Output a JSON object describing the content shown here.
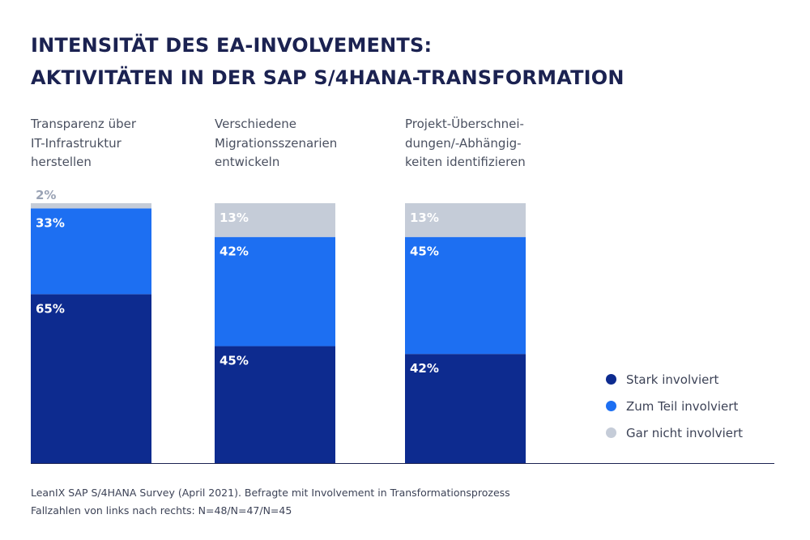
{
  "title_lines": [
    "INTENSITÄT DES EA-INVOLVEMENTS:",
    "AKTIVITÄTEN IN DER SAP S/4HANA-TRANSFORMATION"
  ],
  "chart_data": {
    "type": "bar",
    "stacked": true,
    "categories": [
      "Transparenz über\nIT-Infrastruktur\nherstellen",
      "Verschiedene\nMigrationsszenarien\nentwickeln",
      "Projekt-Überschnei-\ndungen/-Abhängig-\nkeiten identifizieren"
    ],
    "series": [
      {
        "name": "Stark involviert",
        "values": [
          65,
          45,
          42
        ],
        "labels": [
          "65%",
          "45%",
          "42%"
        ],
        "color": "#0d2b8f"
      },
      {
        "name": "Zum Teil involviert",
        "values": [
          33,
          42,
          45
        ],
        "labels": [
          "33%",
          "42%",
          "45%"
        ],
        "color": "#1d6ff2"
      },
      {
        "name": "Gar nicht involviert",
        "values": [
          2,
          13,
          13
        ],
        "labels": [
          "2%",
          "13%",
          "13%"
        ],
        "color": "#c5ccd8"
      }
    ],
    "ylim": [
      0,
      100
    ],
    "grid": false,
    "legend_position": "right"
  },
  "footer_lines": [
    "LeanIX SAP S/4HANA Survey (April 2021). Befragte mit Involvement in Transformationsprozess",
    "Fallzahlen von links nach rechts: N=48/N=47/N=45"
  ]
}
